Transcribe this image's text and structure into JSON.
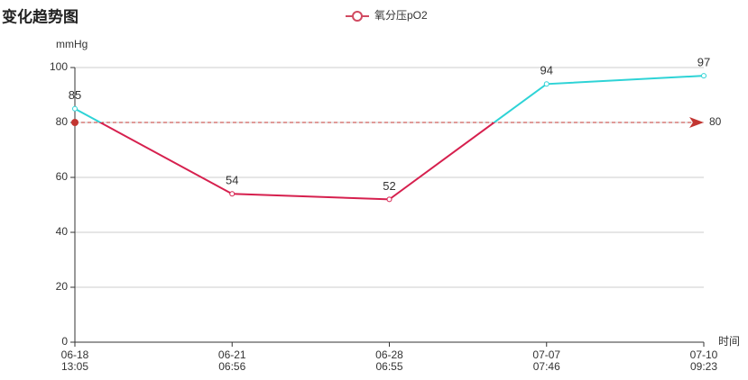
{
  "chart_data": {
    "type": "line",
    "title": "变化趋势图",
    "y_label": "mmHg",
    "x_label": "时间",
    "categories": [
      [
        "06-18",
        "13:05"
      ],
      [
        "06-21",
        "06:56"
      ],
      [
        "06-28",
        "06:55"
      ],
      [
        "07-07",
        "07:46"
      ],
      [
        "07-10",
        "09:23"
      ]
    ],
    "series": [
      {
        "name": "氧分压pO2",
        "color": "#d14a61",
        "values": [
          85,
          54,
          52,
          94,
          97
        ]
      }
    ],
    "ylim": [
      0,
      100
    ],
    "yticks": [
      0,
      20,
      40,
      60,
      80,
      100
    ],
    "grid": true,
    "visual_map": {
      "threshold": 80,
      "above_color": "#2ed3d6",
      "below_color": "#d6204e"
    },
    "mark_line": {
      "value": 80,
      "label": "80",
      "color": "#c23531"
    },
    "legend": "top"
  }
}
